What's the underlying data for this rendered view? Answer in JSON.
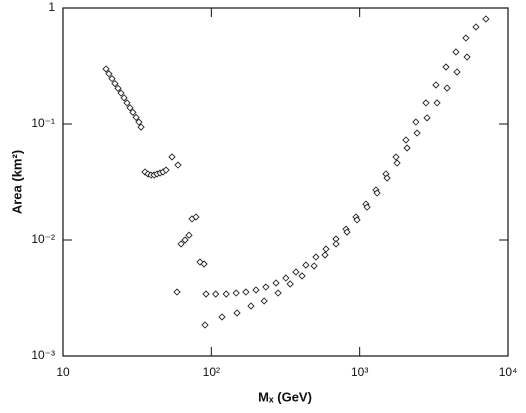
{
  "chart_data": {
    "type": "scatter",
    "y_label": "Area  (km²)",
    "x_label": "Mₓ  (GeV)",
    "x_scale": "log",
    "y_scale": "log",
    "xlim": [
      10,
      10000
    ],
    "ylim": [
      0.001,
      1
    ],
    "xticks": [
      10,
      {
        "value": 100,
        "label": "10²"
      },
      {
        "value": 1000,
        "label": "10³"
      },
      {
        "value": 10000,
        "label": "10⁴"
      }
    ],
    "yticks": [
      {
        "value": 0.001,
        "label": "10⁻³"
      },
      {
        "value": 0.01,
        "label": "10⁻²"
      },
      {
        "value": 0.1,
        "label": "10⁻¹"
      },
      1
    ],
    "marker": "diamond",
    "color": "#222222",
    "x": [
      19.5,
      20.4,
      21.4,
      22.4,
      23.5,
      24.6,
      25.8,
      27.0,
      28.3,
      29.6,
      31.1,
      32.5,
      33.6,
      35.7,
      37.4,
      39.2,
      41.1,
      43.0,
      45.1,
      47.2,
      49.5,
      54.3,
      59.6,
      58.7,
      62.5,
      66.5,
      70.7,
      74.1,
      78.8,
      83.9,
      89.3,
      92.1,
      107,
      126,
      147,
      171,
      200,
      233,
      273,
      318,
      372,
      434,
      507,
      593,
      692,
      809,
      944,
      1102,
      1288,
      1503,
      1758,
      2051,
      2393,
      2799,
      3266,
      3819,
      4457,
      5200,
      6081,
      7096,
      90.7,
      118,
      149,
      185,
      227,
      282,
      340,
      409,
      493,
      584,
      693,
      822,
      960,
      1122,
      1310,
      1530,
      1787,
      2087,
      2438,
      2847,
      3325,
      3884,
      4535,
      5297
    ],
    "values": [
      0.298,
      0.271,
      0.246,
      0.223,
      0.203,
      0.185,
      0.168,
      0.152,
      0.138,
      0.126,
      0.114,
      0.104,
      0.094,
      0.0386,
      0.0371,
      0.0363,
      0.0363,
      0.0371,
      0.0378,
      0.0386,
      0.0401,
      0.052,
      0.0443,
      0.00356,
      0.00924,
      0.01,
      0.011,
      0.0152,
      0.0158,
      0.00646,
      0.00621,
      0.00342,
      0.00342,
      0.00342,
      0.00349,
      0.00356,
      0.00371,
      0.00393,
      0.00426,
      0.0047,
      0.0053,
      0.00608,
      0.00713,
      0.00836,
      0.0102,
      0.0124,
      0.0158,
      0.0204,
      0.027,
      0.0371,
      0.0519,
      0.0728,
      0.104,
      0.152,
      0.217,
      0.31,
      0.418,
      0.551,
      0.686,
      0.804,
      0.00185,
      0.00217,
      0.00235,
      0.0027,
      0.00298,
      0.00349,
      0.00418,
      0.0049,
      0.00597,
      0.00743,
      0.00924,
      0.0117,
      0.0149,
      0.0192,
      0.0254,
      0.0342,
      0.0461,
      0.0621,
      0.0836,
      0.113,
      0.152,
      0.204,
      0.281,
      0.378
    ]
  }
}
